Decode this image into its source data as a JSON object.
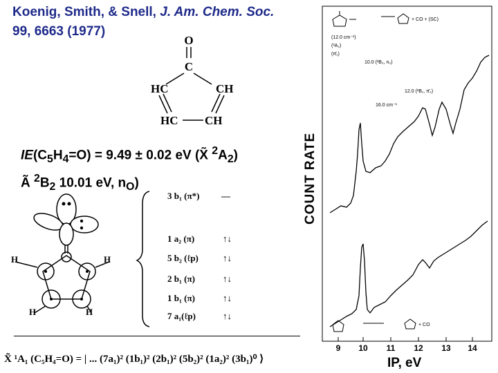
{
  "reference": {
    "authors": "Koenig, Smith, & Snell, ",
    "journal": "J. Am. Chem. Soc.",
    "citation": " 99, 6663 (1977)"
  },
  "molecule_atoms": {
    "o": "O",
    "c": "C",
    "hc_left": "HC",
    "ch_right": "CH",
    "hc_bottom": "HC",
    "ch_bottom": "CH"
  },
  "ionization": {
    "ie_label": "IE",
    "formula_pre": "(C",
    "sub5": "5",
    "mid": "H",
    "sub4": "4",
    "formula_post": "=O) = 9.49 ± 0.02 eV (X̃ ",
    "state_sup": "2",
    "state_a": "A",
    "state_sub": "2",
    "close": ")",
    "line2_pre": "Ã ",
    "line2_sup": "2",
    "line2_b": "B",
    "line2_sub": "2",
    "line2_post": " 10.01 eV, n",
    "line2_sub_o": "O",
    "line2_close": ")"
  },
  "orbital_atoms": {
    "h_left": "H",
    "h_right": "H",
    "h_bottom_left": "H",
    "h_bottom_right": "H"
  },
  "orbitals": [
    {
      "label": "3 b₁ (π*)",
      "occupancy": "—"
    },
    {
      "label": "1 a₂ (π)",
      "occupancy": "↑↓"
    },
    {
      "label": "5 b₂ (ℓp)",
      "occupancy": "↑↓"
    },
    {
      "label": "2 b₁ (π)",
      "occupancy": "↑↓"
    },
    {
      "label": "1 b₁ (π)",
      "occupancy": "↑↓"
    },
    {
      "label": "7 a₁(ℓp)",
      "occupancy": "↑↓"
    }
  ],
  "configuration": "X̃ ¹A₁ (C₅H₄=O) = | ... (7a₁)² (1b₁)² (2b₁)² (5b₂)² (1a₂)² (3b₁)⁰ ⟩",
  "spectrum": {
    "y_axis_label": "COUNT RATE",
    "x_axis_label": "IP, eV",
    "x_ticks": [
      "9",
      "10",
      "11",
      "12",
      "13",
      "14"
    ],
    "annotations": {
      "scheme_top": "+ CO + (SC)",
      "state_12000": "(12.0 cm⁻¹)",
      "pi_a": "(²A₂)",
      "pi_b": "(π̄₁)",
      "no_label": "10.0 (²B₂, n₀)",
      "ann_120": "12.0 (²B₁, π̄₂)",
      "ann_hump": "16.0 cm⁻¹",
      "scheme_bottom": "+ CO"
    }
  },
  "colors": {
    "reference": "#1e2a8a",
    "text": "#000000"
  }
}
